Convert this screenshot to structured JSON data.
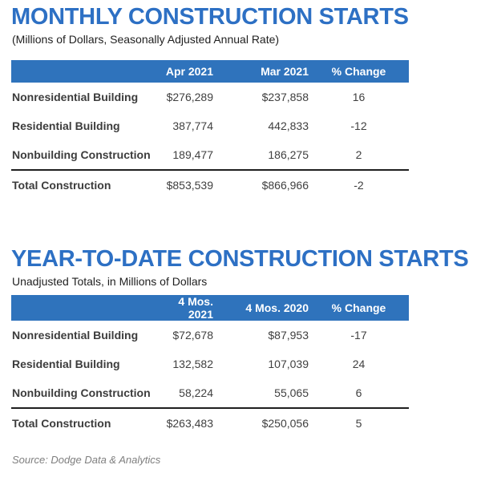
{
  "colors": {
    "title_blue": "#2D70C4",
    "header_bar_blue": "#2F73BC",
    "header_text": "#FFFFFF",
    "body_text": "#404040",
    "total_rule": "#1F1F1F",
    "source_gray": "#7F7F7F"
  },
  "source": "Source: Dodge Data & Analytics",
  "chart_data": [
    {
      "type": "table",
      "title": "MONTHLY CONSTRUCTION STARTS",
      "subtitle": "(Millions of Dollars, Seasonally Adjusted Annual Rate)",
      "columns": [
        "",
        "Apr 2021",
        "Mar 2021",
        "% Change"
      ],
      "rows": [
        [
          "Nonresidential Building",
          "$276,289",
          "$237,858",
          "16"
        ],
        [
          "Residential Building",
          "387,774",
          "442,833",
          "-12"
        ],
        [
          "Nonbuilding Construction",
          "189,477",
          "186,275",
          "2"
        ],
        [
          "Total Construction",
          "$853,539",
          "$866,966",
          "-2"
        ]
      ]
    },
    {
      "type": "table",
      "title": "YEAR-TO-DATE CONSTRUCTION STARTS",
      "subtitle": "Unadjusted Totals, in Millions of Dollars",
      "columns": [
        "",
        "4 Mos. 2021",
        "4 Mos. 2020",
        "% Change"
      ],
      "rows": [
        [
          "Nonresidential Building",
          "$72,678",
          "$87,953",
          "-17"
        ],
        [
          "Residential Building",
          "132,582",
          "107,039",
          "24"
        ],
        [
          "Nonbuilding Construction",
          "58,224",
          "55,065",
          "6"
        ],
        [
          "Total Construction",
          "$263,483",
          "$250,056",
          "5"
        ]
      ]
    }
  ]
}
